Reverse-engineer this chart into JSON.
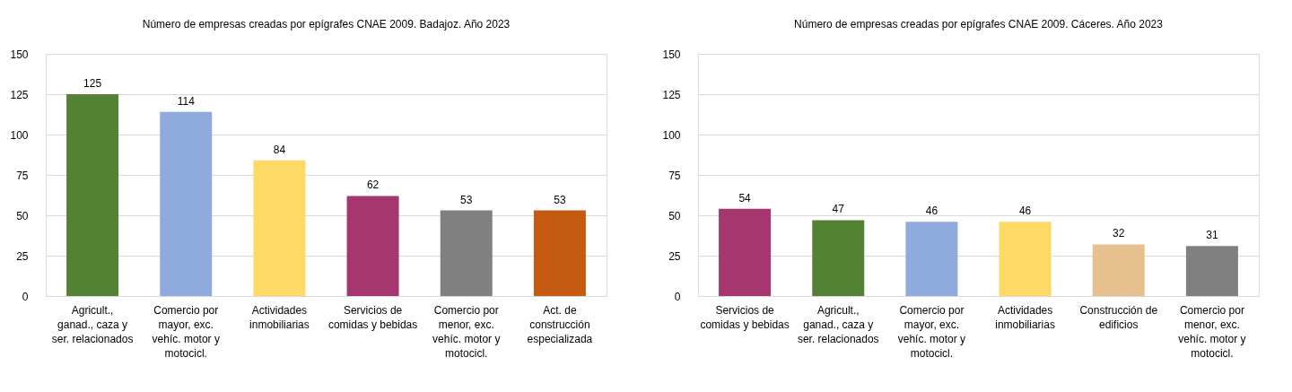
{
  "chart_data": [
    {
      "type": "bar",
      "title": "Número de empresas creadas por epígrafes CNAE 2009. Badajoz. Año 2023",
      "categories": [
        "Agricult., ganad., caza y ser. relacionados",
        "Comercio por mayor, exc. vehíc. motor y motocicl.",
        "Actividades inmobiliarias",
        "Servicios de comidas y bebidas",
        "Comercio por menor, exc. vehíc. motor y motocicl.",
        "Act. de construcción especializada"
      ],
      "values": [
        125,
        114,
        84,
        62,
        53,
        53
      ],
      "colors": [
        "#548235",
        "#8faadc",
        "#ffd966",
        "#a5366f",
        "#808080",
        "#c55a11"
      ],
      "ylim": [
        0,
        150
      ],
      "yticks": [
        0,
        25,
        50,
        75,
        100,
        125,
        150
      ],
      "grid": "y",
      "data_labels": true
    },
    {
      "type": "bar",
      "title": "Número de empresas creadas por epígrafes CNAE 2009. Cáceres. Año 2023",
      "categories": [
        "Servicios de comidas y bebidas",
        "Agricult., ganad., caza y ser. relacionados",
        "Comercio por mayor, exc. vehíc. motor y motocicl.",
        "Actividades inmobiliarias",
        "Construcción de edificios",
        "Comercio por menor, exc. vehíc. motor y motocicl."
      ],
      "values": [
        54,
        47,
        46,
        46,
        32,
        31
      ],
      "colors": [
        "#a5366f",
        "#548235",
        "#8faadc",
        "#ffd966",
        "#e6c08f",
        "#808080"
      ],
      "ylim": [
        0,
        150
      ],
      "yticks": [
        0,
        25,
        50,
        75,
        100,
        125,
        150
      ],
      "grid": "y",
      "data_labels": true
    }
  ]
}
